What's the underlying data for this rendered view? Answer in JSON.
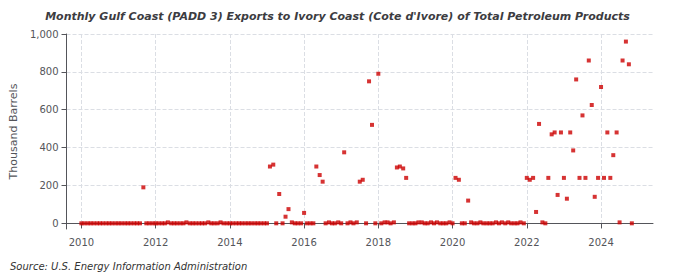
{
  "chart_data": {
    "type": "scatter",
    "title": "Monthly Gulf Coast (PADD 3) Exports to Ivory Coast (Cote d'Ivore) of Total Petroleum Products",
    "ylabel": "Thousand Barrels",
    "annotations": [
      "Source: U.S. Energy Information Administration"
    ],
    "color": "#cc0000",
    "marker": "square",
    "grid": true,
    "xlim": [
      2009.6,
      2025.4
    ],
    "xticks": [
      2010,
      2012,
      2014,
      2016,
      2018,
      2020,
      2022,
      2024
    ],
    "ylim": [
      -30,
      1000
    ],
    "yticks": [
      0,
      200,
      400,
      600,
      800,
      {
        "value": 1000,
        "label": "1,000"
      }
    ],
    "x": [
      2010.0,
      2010.08,
      2010.17,
      2010.25,
      2010.33,
      2010.42,
      2010.5,
      2010.58,
      2010.67,
      2010.75,
      2010.83,
      2010.92,
      2011.0,
      2011.08,
      2011.17,
      2011.25,
      2011.33,
      2011.42,
      2011.5,
      2011.58,
      2011.67,
      2011.75,
      2011.83,
      2011.92,
      2012.0,
      2012.08,
      2012.17,
      2012.25,
      2012.33,
      2012.42,
      2012.5,
      2012.58,
      2012.67,
      2012.75,
      2012.83,
      2012.92,
      2013.0,
      2013.08,
      2013.17,
      2013.25,
      2013.33,
      2013.42,
      2013.5,
      2013.58,
      2013.67,
      2013.75,
      2013.83,
      2013.92,
      2014.0,
      2014.08,
      2014.17,
      2014.25,
      2014.33,
      2014.42,
      2014.5,
      2014.58,
      2014.67,
      2014.75,
      2014.83,
      2014.92,
      2015.0,
      2015.08,
      2015.17,
      2015.25,
      2015.33,
      2015.42,
      2015.5,
      2015.58,
      2015.67,
      2015.75,
      2015.83,
      2015.92,
      2016.0,
      2016.08,
      2016.17,
      2016.25,
      2016.33,
      2016.42,
      2016.5,
      2016.58,
      2016.67,
      2016.75,
      2016.83,
      2016.92,
      2017.0,
      2017.08,
      2017.17,
      2017.25,
      2017.33,
      2017.42,
      2017.5,
      2017.58,
      2017.67,
      2017.75,
      2017.83,
      2017.92,
      2018.0,
      2018.08,
      2018.17,
      2018.25,
      2018.33,
      2018.42,
      2018.5,
      2018.58,
      2018.67,
      2018.75,
      2018.83,
      2018.92,
      2019.0,
      2019.08,
      2019.17,
      2019.25,
      2019.33,
      2019.42,
      2019.5,
      2019.58,
      2019.67,
      2019.75,
      2019.83,
      2019.92,
      2020.0,
      2020.08,
      2020.17,
      2020.25,
      2020.33,
      2020.42,
      2020.5,
      2020.58,
      2020.67,
      2020.75,
      2020.83,
      2020.92,
      2021.0,
      2021.08,
      2021.17,
      2021.25,
      2021.33,
      2021.42,
      2021.5,
      2021.58,
      2021.67,
      2021.75,
      2021.83,
      2021.92,
      2022.0,
      2022.08,
      2022.17,
      2022.25,
      2022.33,
      2022.42,
      2022.5,
      2022.58,
      2022.67,
      2022.75,
      2022.83,
      2022.92,
      2023.0,
      2023.08,
      2023.17,
      2023.25,
      2023.33,
      2023.42,
      2023.5,
      2023.58,
      2023.67,
      2023.75,
      2023.83,
      2023.92,
      2024.0,
      2024.08,
      2024.17,
      2024.25,
      2024.33,
      2024.42,
      2024.5,
      2024.58,
      2024.67,
      2024.75,
      2024.83
    ],
    "values": [
      0,
      0,
      0,
      0,
      0,
      0,
      0,
      0,
      0,
      0,
      0,
      0,
      0,
      0,
      0,
      0,
      0,
      0,
      0,
      0,
      190,
      0,
      0,
      0,
      0,
      0,
      0,
      0,
      5,
      0,
      0,
      0,
      0,
      0,
      5,
      0,
      0,
      0,
      0,
      0,
      0,
      5,
      0,
      0,
      0,
      5,
      0,
      0,
      0,
      0,
      0,
      0,
      0,
      0,
      0,
      0,
      0,
      0,
      0,
      0,
      0,
      300,
      310,
      0,
      155,
      0,
      35,
      75,
      5,
      0,
      0,
      0,
      55,
      0,
      0,
      0,
      300,
      255,
      220,
      0,
      5,
      0,
      0,
      5,
      0,
      375,
      0,
      5,
      0,
      5,
      220,
      230,
      0,
      750,
      520,
      0,
      790,
      0,
      5,
      5,
      0,
      5,
      295,
      300,
      290,
      240,
      0,
      0,
      0,
      5,
      5,
      0,
      0,
      5,
      0,
      5,
      0,
      0,
      0,
      5,
      0,
      240,
      230,
      0,
      0,
      120,
      5,
      0,
      0,
      5,
      0,
      0,
      0,
      0,
      5,
      0,
      5,
      0,
      5,
      0,
      0,
      0,
      5,
      0,
      240,
      230,
      240,
      60,
      525,
      5,
      0,
      240,
      470,
      480,
      150,
      480,
      240,
      130,
      480,
      385,
      760,
      240,
      570,
      240,
      860,
      625,
      140,
      240,
      720,
      240,
      480,
      240,
      360,
      480,
      5,
      860,
      960,
      840,
      0
    ]
  }
}
